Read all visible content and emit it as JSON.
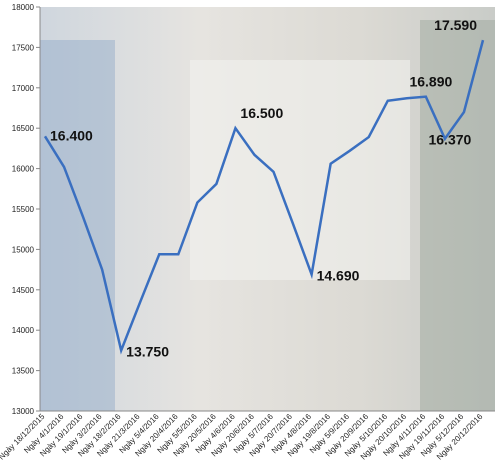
{
  "chart_data": {
    "type": "line",
    "categories": [
      "Ngày 18/12/2015",
      "Ngày 4/1/2016",
      "Ngày 19/1/2016",
      "Ngày 3/2/2016",
      "Ngày 18/2/2016",
      "Ngày 21/3/2016",
      "Ngày 5/4/2016",
      "Ngày 20/4/2016",
      "Ngày 5/5/2016",
      "Ngày 20/5/2016",
      "Ngày 4/6/2016",
      "Ngày 20/6/2016",
      "Ngày 5/7/2016",
      "Ngày 20/7/2016",
      "Ngày 4/8/2016",
      "Ngày 19/8/2016",
      "Ngày 5/9/2016",
      "Ngày 20/9/2016",
      "Ngày 5/10/2016",
      "Ngày 20/10/2016",
      "Ngày 4/11/2016",
      "Ngày 19/11/2016",
      "Ngày 5/12/2016",
      "Ngày 20/12/2016"
    ],
    "values": [
      16400,
      16020,
      15400,
      14750,
      13750,
      14350,
      14940,
      14940,
      15580,
      15810,
      16500,
      16170,
      15960,
      15330,
      14690,
      16060,
      16220,
      16390,
      16840,
      16870,
      16890,
      16370,
      16700,
      17590
    ],
    "value_labels": [
      "16.400",
      null,
      null,
      null,
      "13.750",
      null,
      null,
      null,
      null,
      null,
      "16.500",
      null,
      null,
      null,
      "14.690",
      null,
      null,
      null,
      null,
      null,
      "16.890",
      "16.370",
      null,
      "17.590"
    ],
    "color": "#3a6fc0",
    "ylim": [
      13000,
      18000
    ],
    "yticks": [
      13000,
      13500,
      14000,
      14500,
      15000,
      15500,
      16000,
      16500,
      17000,
      17500,
      18000
    ]
  }
}
